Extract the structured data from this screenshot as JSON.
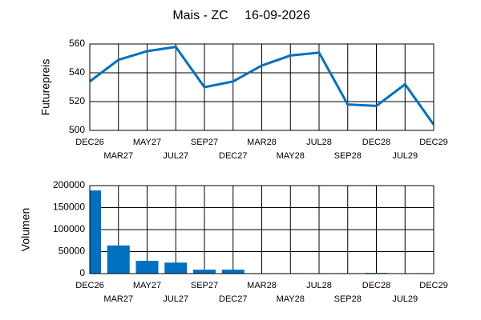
{
  "title": "Mais - ZC",
  "date": "16-09-2026",
  "chart_data": [
    {
      "type": "line",
      "ylabel": "Futurepreis",
      "color": "#0070c0",
      "categories": [
        "DEC26",
        "MAR27",
        "MAY27",
        "JUL27",
        "SEP27",
        "DEC27",
        "MAR28",
        "MAY28",
        "JUL28",
        "SEP28",
        "DEC28",
        "JUL29",
        "DEC29"
      ],
      "values": [
        534,
        549,
        555,
        558,
        530,
        534,
        545,
        552,
        554,
        518,
        517,
        532,
        504
      ],
      "ylim": [
        500,
        560
      ],
      "yticks": [
        500,
        520,
        540,
        560
      ],
      "grid": true
    },
    {
      "type": "bar",
      "ylabel": "Volumen",
      "color": "#0070c0",
      "categories": [
        "DEC26",
        "MAR27",
        "MAY27",
        "JUL27",
        "SEP27",
        "DEC27",
        "MAR28",
        "MAY28",
        "JUL28",
        "SEP28",
        "DEC28",
        "JUL29",
        "DEC29"
      ],
      "values": [
        189000,
        64000,
        29000,
        25000,
        9000,
        9000,
        1000,
        1000,
        1000,
        1000,
        1500,
        0,
        1000
      ],
      "ylim": [
        0,
        200000
      ],
      "yticks": [
        0,
        50000,
        100000,
        150000,
        200000
      ],
      "grid": true
    }
  ]
}
